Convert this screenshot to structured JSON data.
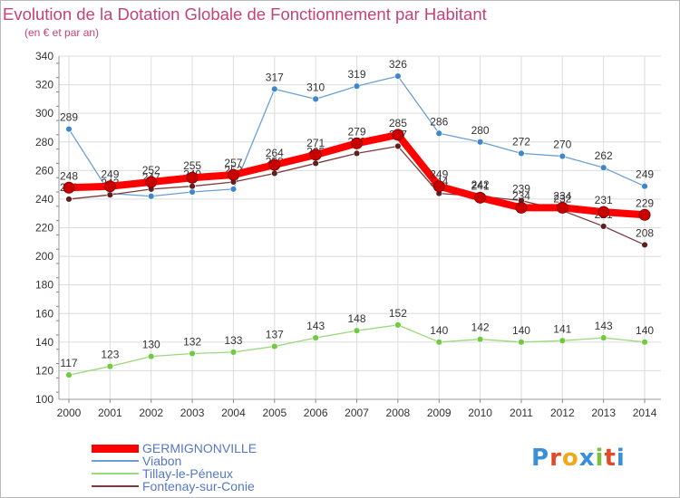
{
  "header": {
    "title": "Evolution de la Dotation Globale de Fonctionnement par Habitant",
    "subtitle": "(en € et par an)"
  },
  "logo": {
    "text": "Proxiti",
    "colors": [
      "#3b8fd6",
      "#e04b2b",
      "#f0a81b",
      "#3b8fd6",
      "#79c13a",
      "#e04b2b",
      "#3b8fd6"
    ]
  },
  "chart_data": {
    "type": "line",
    "title": "Evolution de la Dotation Globale de Fonctionnement par Habitant",
    "subtitle": "(en € et par an)",
    "xlabel": "",
    "ylabel": "",
    "x": [
      "2000",
      "2001",
      "2002",
      "2003",
      "2004",
      "2005",
      "2006",
      "2007",
      "2008",
      "2009",
      "2010",
      "2011",
      "2012",
      "2013",
      "2014"
    ],
    "ylim": [
      100,
      340
    ],
    "yticks": [
      100,
      120,
      140,
      160,
      180,
      200,
      220,
      240,
      260,
      280,
      300,
      320,
      340
    ],
    "grid": true,
    "legend_position": "bottom-left",
    "series": [
      {
        "name": "Viabon",
        "color": "#6a9fd6",
        "marker": "#3f86cc",
        "values": [
          289,
          244,
          242,
          245,
          247,
          317,
          310,
          319,
          326,
          286,
          280,
          272,
          270,
          262,
          249
        ],
        "labels": [
          "289",
          "",
          "",
          "",
          "",
          "317",
          "310",
          "319",
          "326",
          "286",
          "280",
          "272",
          "270",
          "262",
          "249"
        ]
      },
      {
        "name": "Tillay-le-Péneux",
        "color": "#9ad97c",
        "marker": "#6fcb3d",
        "values": [
          117,
          123,
          130,
          132,
          133,
          137,
          143,
          148,
          152,
          140,
          142,
          140,
          141,
          143,
          140
        ],
        "labels": [
          "117",
          "123",
          "130",
          "132",
          "133",
          "137",
          "143",
          "148",
          "152",
          "140",
          "142",
          "140",
          "141",
          "143",
          "140"
        ]
      },
      {
        "name": "Fontenay-sur-Conie",
        "color": "#7d3a3a",
        "marker": "#5e1f1f",
        "values": [
          240,
          243,
          247,
          249,
          252,
          258,
          265,
          272,
          277,
          244,
          242,
          239,
          232,
          221,
          208
        ],
        "labels": [
          "240",
          "243",
          "247",
          "249",
          "252",
          "258",
          "265",
          "272",
          "277",
          "244",
          "242",
          "239",
          "232",
          "221",
          "208"
        ]
      },
      {
        "name": "GERMIGNONVILLE",
        "color": "#ff0000",
        "marker": "#c80000",
        "values": [
          248,
          249,
          252,
          255,
          257,
          264,
          271,
          279,
          285,
          249,
          241,
          234,
          234,
          231,
          229
        ],
        "labels": [
          "248",
          "249",
          "252",
          "255",
          "257",
          "264",
          "271",
          "279",
          "285",
          "249",
          "241",
          "234",
          "234",
          "231",
          "229"
        ]
      }
    ]
  },
  "legend": {
    "items": [
      {
        "name": "GERMIGNONVILLE",
        "color": "#ff0000",
        "thickness": 9
      },
      {
        "name": "Viabon",
        "color": "#6a9fd6",
        "thickness": 2
      },
      {
        "name": "Tillay-le-Péneux",
        "color": "#9ad97c",
        "thickness": 2
      },
      {
        "name": "Fontenay-sur-Conie",
        "color": "#7d3a3a",
        "thickness": 2
      }
    ]
  }
}
